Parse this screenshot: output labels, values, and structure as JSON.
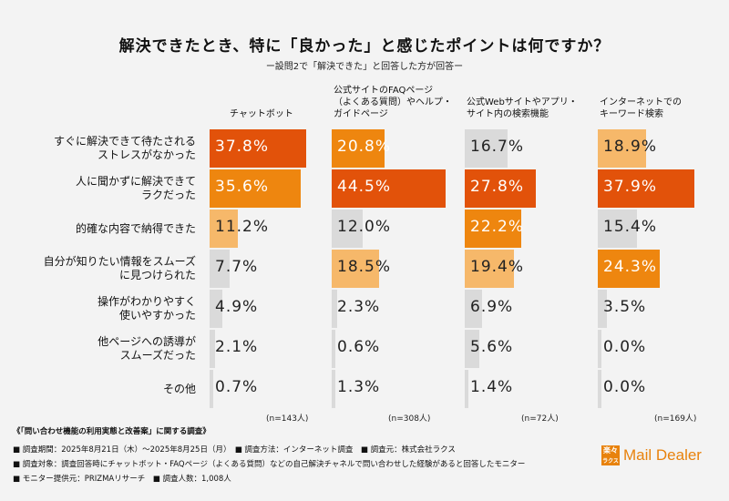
{
  "title": "解決できたとき、特に「良かった」と感じたポイントは何ですか？",
  "subtitle": "ー設問2で「解決できた」と回答した方が回答ー",
  "colors": {
    "level1": "#e2520a",
    "level2": "#ee860f",
    "level3": "#f6b86a",
    "other": "#dadada"
  },
  "chart_data": {
    "type": "table",
    "columns": [
      {
        "name": "チャットボット",
        "lines": [
          "チャットボット"
        ],
        "n": "(n=143人)",
        "values": [
          37.8,
          35.6,
          11.2,
          7.7,
          4.9,
          2.1,
          0.7
        ],
        "labels": [
          "37.8%",
          "35.6%",
          "11.2%",
          "7.7%",
          "4.9%",
          "2.1%",
          "0.7%"
        ]
      },
      {
        "name": "公式サイトのFAQページ（よくある質問）やヘルプ・ガイドページ",
        "lines": [
          "公式サイトのFAQページ",
          "（よくある質問）やヘルプ・",
          "ガイドページ"
        ],
        "n": "(n=308人)",
        "values": [
          20.8,
          44.5,
          12.0,
          18.5,
          2.3,
          0.6,
          1.3
        ],
        "labels": [
          "20.8%",
          "44.5%",
          "12.0%",
          "18.5%",
          "2.3%",
          "0.6%",
          "1.3%"
        ]
      },
      {
        "name": "公式Webサイトやアプリ・サイト内の検索機能",
        "lines": [
          "公式Webサイトやアプリ・",
          "サイト内の検索機能"
        ],
        "n": "(n=72人)",
        "values": [
          16.7,
          27.8,
          22.2,
          19.4,
          6.9,
          5.6,
          1.4
        ],
        "labels": [
          "16.7%",
          "27.8%",
          "22.2%",
          "19.4%",
          "6.9%",
          "5.6%",
          "1.4%"
        ]
      },
      {
        "name": "インターネットでのキーワード検索",
        "lines": [
          "インターネットでの",
          "キーワード検索"
        ],
        "n": "(n=169人)",
        "values": [
          18.9,
          37.9,
          15.4,
          24.3,
          3.5,
          0.0,
          0.0
        ],
        "labels": [
          "18.9%",
          "37.9%",
          "15.4%",
          "24.3%",
          "3.5%",
          "0.0%",
          "0.0%"
        ]
      }
    ],
    "rows": [
      {
        "label": "すぐに解決できて待たされるストレスがなかった",
        "lines": [
          "すぐに解決できて待たされる",
          "ストレスがなかった"
        ]
      },
      {
        "label": "人に聞かずに解決できてラクだった",
        "lines": [
          "人に聞かずに解決できて",
          "ラクだった"
        ]
      },
      {
        "label": "的確な内容で納得できた",
        "lines": [
          "的確な内容で納得できた"
        ]
      },
      {
        "label": "自分が知りたい情報をスムーズに見つけられた",
        "lines": [
          "自分が知りたい情報をスムーズ",
          "に見つけられた"
        ]
      },
      {
        "label": "操作がわかりやすく使いやすかった",
        "lines": [
          "操作がわかりやすく",
          "使いやすかった"
        ]
      },
      {
        "label": "他ページへの誘導がスムーズだった",
        "lines": [
          "他ページへの誘導が",
          "スムーズだった"
        ]
      },
      {
        "label": "その他",
        "lines": [
          "その他"
        ]
      }
    ]
  },
  "footnotes": [
    "《「問い合わせ機能の利用実態と改善案」に関する調査》",
    "■ 調査期間：2025年8月21日（木）〜2025年8月25日（月）　■ 調査方法：インターネット調査　■ 調査元：株式会社ラクス",
    "■ 調査対象：調査回答時にチャットボット・FAQページ（よくある質問）などの自己解決チャネルで問い合わせした経験があると回答したモニター",
    "■ モニター提供元：PRIZMAリサーチ　■ 調査人数：1,008人"
  ],
  "logo": {
    "mark_top": "楽々",
    "mark_bottom": "ラクス",
    "text": "Mail Dealer"
  }
}
